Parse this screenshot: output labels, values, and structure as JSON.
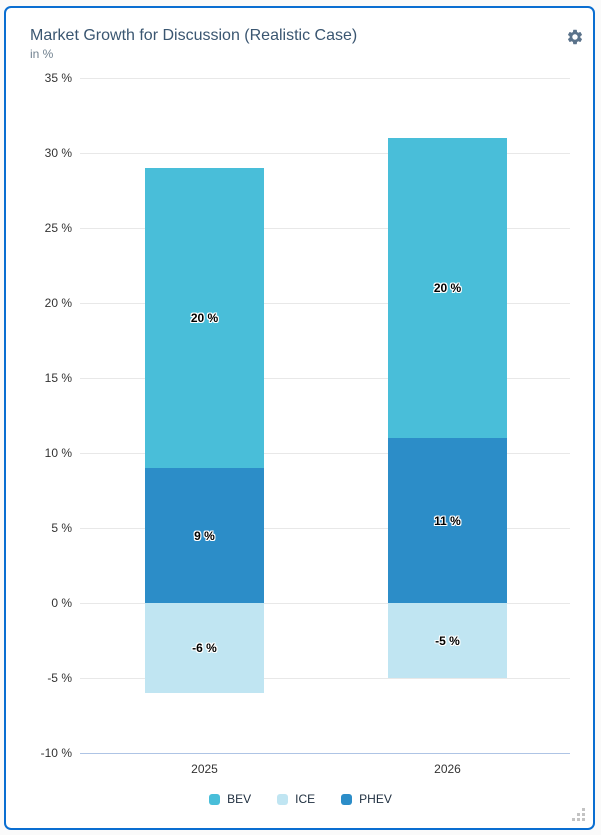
{
  "card": {
    "title": "Market Growth for Discussion (Realistic Case)",
    "subtitle": "in %"
  },
  "icons": {
    "gear": "gear-icon",
    "resize_grip": "resize-grip-icon"
  },
  "colors": {
    "card_border": "#0a6ed1",
    "gridline": "#e8e8e8",
    "axis_bottom_line": "#aec4e5",
    "title_text": "#3a5671",
    "subtitle_text": "#70818f",
    "tick_text": "#333333",
    "legend_text": "#1d2d3e",
    "gear_icon": "#5b738b"
  },
  "chart_data": {
    "type": "bar",
    "stacked": true,
    "title": "Market Growth for Discussion (Realistic Case)",
    "subtitle": "in %",
    "categories": [
      "2025",
      "2026"
    ],
    "series": [
      {
        "name": "BEV",
        "color": "#49bed9",
        "values": [
          20,
          20
        ]
      },
      {
        "name": "ICE",
        "color": "#c0e5f2",
        "values": [
          -6,
          -5
        ]
      },
      {
        "name": "PHEV",
        "color": "#2c8dc8",
        "values": [
          9,
          11
        ]
      }
    ],
    "stack_order": [
      "PHEV",
      "BEV",
      "ICE"
    ],
    "data_labels": [
      "20 %",
      "9 %",
      "-6 %",
      "20 %",
      "11 %",
      "-5 %"
    ],
    "label_format": "{v} %",
    "ylim": [
      -10,
      35
    ],
    "ytick_step": 5,
    "ytick_labels": [
      "35 %",
      "30 %",
      "25 %",
      "20 %",
      "15 %",
      "10 %",
      "5 %",
      "0 %",
      "-5 %",
      "-10 %"
    ],
    "grid": true,
    "legend_position": "bottom"
  }
}
